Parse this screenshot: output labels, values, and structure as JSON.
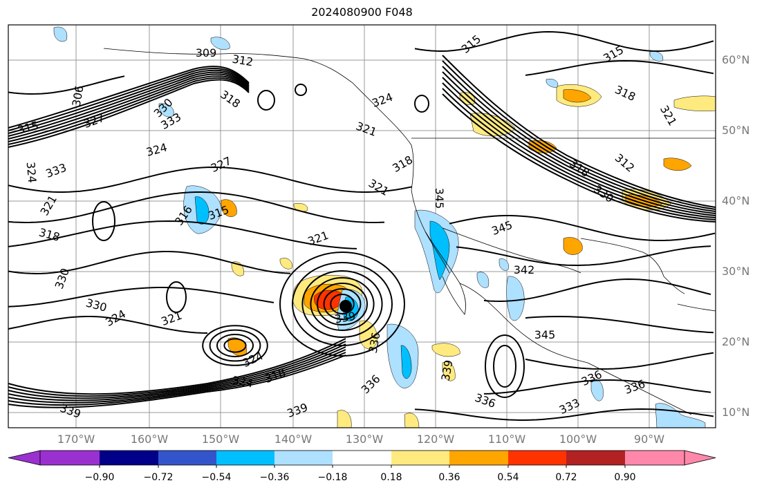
{
  "title": "2024080900 F048",
  "lat_labels": [
    "60°N",
    "50°N",
    "40°N",
    "30°N",
    "20°N",
    "10°N"
  ],
  "lon_labels": [
    "170°W",
    "160°W",
    "150°W",
    "140°W",
    "130°W",
    "120°W",
    "110°W",
    "100°W",
    "90°W"
  ],
  "colorbar": {
    "ticks": [
      "−0.90",
      "−0.72",
      "−0.54",
      "−0.36",
      "−0.18",
      "0.18",
      "0.36",
      "0.54",
      "0.72",
      "0.90"
    ],
    "colors": [
      "#9b30d0",
      "#000088",
      "#3355cc",
      "#00bfff",
      "#aee0ff",
      "#ffffff",
      "#ffea80",
      "#ffa500",
      "#ff3300",
      "#b22222",
      "#ff88aa"
    ]
  },
  "contour_labels": [
    "309",
    "312",
    "306",
    "315",
    "327",
    "333",
    "330",
    "318",
    "324",
    "321",
    "324",
    "327",
    "333",
    "324",
    "321",
    "318",
    "315",
    "316",
    "330",
    "330",
    "324",
    "321",
    "324",
    "318",
    "339",
    "324",
    "321",
    "318",
    "321",
    "339",
    "336",
    "336",
    "339",
    "336",
    "339",
    "345",
    "342",
    "345",
    "336",
    "333",
    "336",
    "315",
    "318",
    "315",
    "312",
    "318",
    "330",
    "321",
    "345"
  ]
}
